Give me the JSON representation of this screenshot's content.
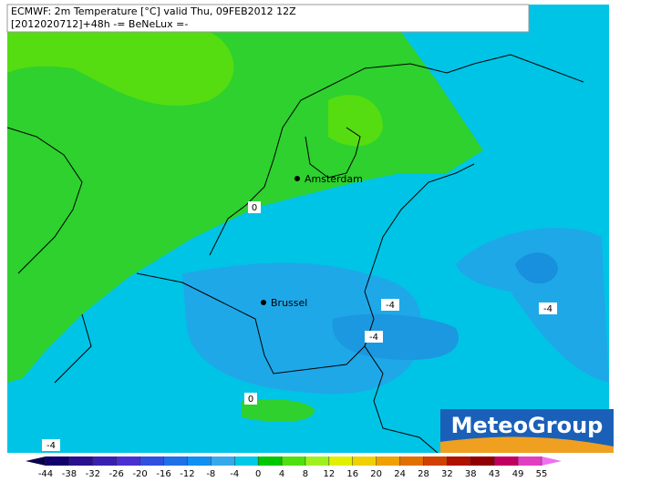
{
  "header": {
    "line1": "ECMWF: 2m Temperature [°C] valid Thu, 09FEB2012 12Z",
    "line2": "[2012020712]+48h -= BeNeLux =-"
  },
  "cities": [
    "Amsterdam",
    "Brussel"
  ],
  "contour_labels": [
    "0",
    "-4",
    "-4",
    "-4",
    "0",
    "-4"
  ],
  "logo": "MeteoGroup",
  "colorbar": {
    "ticks": [
      -44,
      -38,
      -32,
      -26,
      -20,
      -16,
      -12,
      -8,
      -4,
      0,
      4,
      8,
      12,
      16,
      20,
      24,
      28,
      32,
      38,
      43,
      49,
      55
    ],
    "colors": [
      "#10006e",
      "#2a1090",
      "#3a20b0",
      "#4a30d0",
      "#3050e0",
      "#2070e8",
      "#1090f0",
      "#38a8ec",
      "#00c8e8",
      "#00c800",
      "#50e010",
      "#a0f020",
      "#e0f000",
      "#f0d000",
      "#f0a000",
      "#e07000",
      "#d04000",
      "#b01000",
      "#900000",
      "#c00060",
      "#e040c0"
    ],
    "low_color": "#08004a",
    "high_color": "#f070f0"
  }
}
